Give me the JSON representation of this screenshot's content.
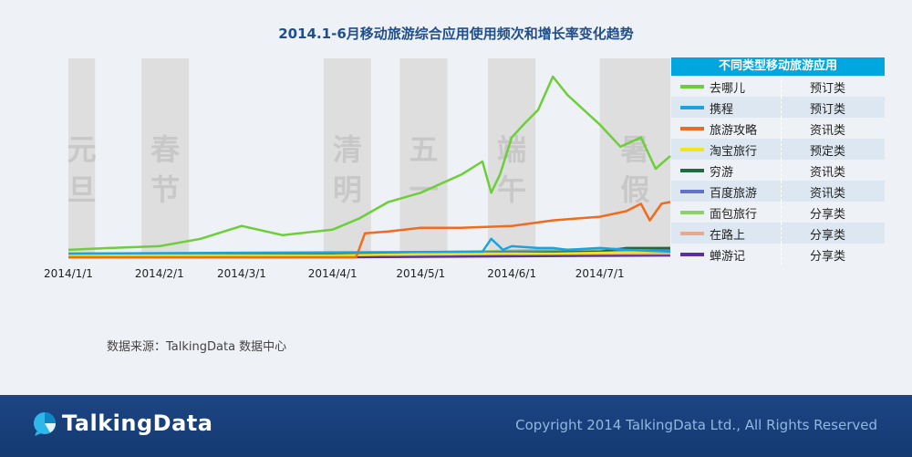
{
  "chart_data": {
    "type": "line",
    "title": "2014.1-6月移动旅游综合应用使用频次和增长率变化趋势",
    "xlabel": "",
    "ylabel": "",
    "x_ticks": [
      "2014/1/1",
      "2014/2/1",
      "2014/3/1",
      "2014/4/1",
      "2014/5/1",
      "2014/6/1",
      "2014/7/1"
    ],
    "x_range": [
      "2014-01-01",
      "2014-07-25"
    ],
    "y_range": [
      0,
      100
    ],
    "y_axis_shown": false,
    "grid": false,
    "legend_position": "right",
    "legend_header": "不同类型移动旅游应用",
    "holidays": [
      {
        "label": "元旦",
        "start": "2014-01-01",
        "end": "2014-01-03"
      },
      {
        "label": "春节",
        "start": "2014-01-31",
        "end": "2014-02-06"
      },
      {
        "label": "清明",
        "start": "2014-04-05",
        "end": "2014-04-07"
      },
      {
        "label": "五一",
        "start": "2014-05-01",
        "end": "2014-05-03"
      },
      {
        "label": "端午",
        "start": "2014-05-31",
        "end": "2014-06-02"
      },
      {
        "label": "暑假",
        "start": "2014-07-01",
        "end": "2014-07-25"
      }
    ],
    "series": [
      {
        "name": "去哪儿",
        "type_label": "预订类",
        "color": "#6ccf3a",
        "x": [
          "2014-01-01",
          "2014-01-15",
          "2014-02-01",
          "2014-02-15",
          "2014-03-01",
          "2014-03-15",
          "2014-04-01",
          "2014-04-10",
          "2014-04-20",
          "2014-05-01",
          "2014-05-15",
          "2014-05-22",
          "2014-05-25",
          "2014-05-28",
          "2014-06-01",
          "2014-06-05",
          "2014-06-10",
          "2014-06-15",
          "2014-06-20",
          "2014-07-01",
          "2014-07-08",
          "2014-07-15",
          "2014-07-20",
          "2014-07-25"
        ],
        "values": [
          4,
          5,
          6,
          10,
          17,
          12,
          15,
          21,
          30,
          35,
          45,
          52,
          35,
          45,
          65,
          72,
          80,
          98,
          88,
          72,
          60,
          65,
          48,
          55
        ]
      },
      {
        "name": "携程",
        "type_label": "预订类",
        "color": "#1aa3e0",
        "x": [
          "2014-01-01",
          "2014-05-22",
          "2014-05-25",
          "2014-05-29",
          "2014-06-01",
          "2014-06-10",
          "2014-06-15",
          "2014-06-20",
          "2014-07-01",
          "2014-07-10",
          "2014-07-25"
        ],
        "values": [
          2,
          3,
          10,
          4,
          6,
          5,
          5,
          4,
          5,
          4,
          3
        ]
      },
      {
        "name": "旅游攻略",
        "type_label": "资讯类",
        "color": "#f26b1d",
        "x": [
          "2014-01-01",
          "2014-04-09",
          "2014-04-12",
          "2014-04-20",
          "2014-05-01",
          "2014-05-15",
          "2014-06-01",
          "2014-06-15",
          "2014-07-01",
          "2014-07-10",
          "2014-07-15",
          "2014-07-18",
          "2014-07-22",
          "2014-07-25"
        ],
        "values": [
          0,
          0,
          13,
          14,
          16,
          16,
          17,
          20,
          22,
          25,
          29,
          20,
          29,
          30
        ]
      },
      {
        "name": "淘宝旅行",
        "type_label": "预定类",
        "color": "#f0e41a",
        "x": [
          "2014-01-01",
          "2014-04-01",
          "2014-05-15",
          "2014-06-15",
          "2014-07-25"
        ],
        "values": [
          1,
          1,
          2,
          2,
          3
        ]
      },
      {
        "name": "穷游",
        "type_label": "资讯类",
        "color": "#1f6b3f",
        "x": [
          "2014-01-01",
          "2014-06-01",
          "2014-07-01",
          "2014-07-10",
          "2014-07-25"
        ],
        "values": [
          1,
          2,
          3,
          5,
          5
        ]
      },
      {
        "name": "百度旅游",
        "type_label": "资讯类",
        "color": "#6272c8",
        "x": [
          "2014-01-01",
          "2014-05-01",
          "2014-06-01",
          "2014-07-01",
          "2014-07-25"
        ],
        "values": [
          1,
          2,
          3,
          3,
          4
        ]
      },
      {
        "name": "面包旅行",
        "type_label": "分享类",
        "color": "#8ed06a",
        "x": [
          "2014-01-01",
          "2014-04-01",
          "2014-05-15",
          "2014-06-15",
          "2014-07-25"
        ],
        "values": [
          2,
          2,
          3,
          4,
          5
        ]
      },
      {
        "name": "在路上",
        "type_label": "分享类",
        "color": "#e8a98a",
        "x": [
          "2014-01-01",
          "2014-04-01",
          "2014-07-25"
        ],
        "values": [
          2,
          2,
          2
        ]
      },
      {
        "name": "蝉游记",
        "type_label": "分享类",
        "color": "#5a2fa0",
        "x": [
          "2014-01-01",
          "2014-04-03",
          "2014-07-25"
        ],
        "values": [
          0,
          0,
          1
        ]
      }
    ]
  },
  "source_text": "数据来源：TalkingData 数据中心",
  "footer": {
    "logo_text": "TalkingData",
    "copyright": "Copyright 2014 TalkingData Ltd., All Rights Reserved"
  }
}
